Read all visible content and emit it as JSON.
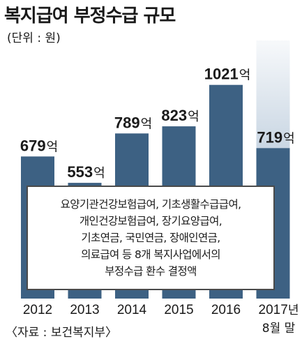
{
  "title": "복지급여 부정수급 규모",
  "unit_label": "(단위 : 원)",
  "source": "〈자료 : 보건복지부〉",
  "note": {
    "lines": [
      "요양기관건강보험급여, 기초생활수급급여,",
      "개인건강보험급여, 장기요양급여,",
      "기초연금, 국민연금, 장애인연금,",
      "의료급여 등 8개 복지사업에서의",
      "부정수급 환수 결정액"
    ]
  },
  "colors": {
    "bar": "#3d6183",
    "bar_projection_top": "#c9d6e3",
    "bar_projection_fade": "#e3eaf1",
    "text": "#1a1a1a"
  },
  "chart_data": {
    "type": "bar",
    "categories": [
      "2012",
      "2013",
      "2014",
      "2015",
      "2016",
      "2017년 8월 말"
    ],
    "values": [
      679,
      553,
      789,
      823,
      1021,
      719
    ],
    "value_labels": [
      "679억",
      "553억",
      "789억",
      "823억",
      "1021억",
      "719억"
    ],
    "value_unit": "억",
    "ylim": [
      0,
      1200
    ],
    "grid": false,
    "legend": "none",
    "title": "복지급여 부정수급 규모",
    "xlabel": "",
    "ylabel": ""
  }
}
